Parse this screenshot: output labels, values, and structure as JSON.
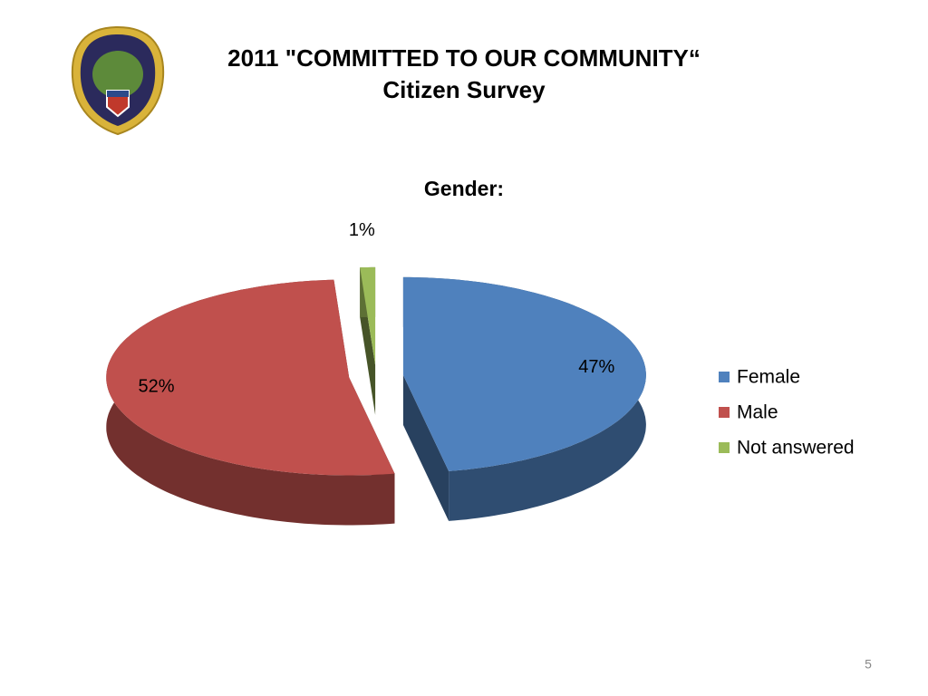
{
  "slide": {
    "title": [
      "2011 \"COMMITTED TO OUR COMMUNITY“",
      "Citizen Survey"
    ],
    "page_number": "5"
  },
  "chart_data": {
    "type": "pie",
    "title": "Gender:",
    "categories": [
      "Female",
      "Male",
      "Not answered"
    ],
    "values": [
      47,
      52,
      1
    ],
    "value_labels": [
      "47%",
      "52%",
      "1%"
    ],
    "colors": [
      "#4f81bd",
      "#c0504d",
      "#9bbb59"
    ],
    "legend": "right"
  }
}
